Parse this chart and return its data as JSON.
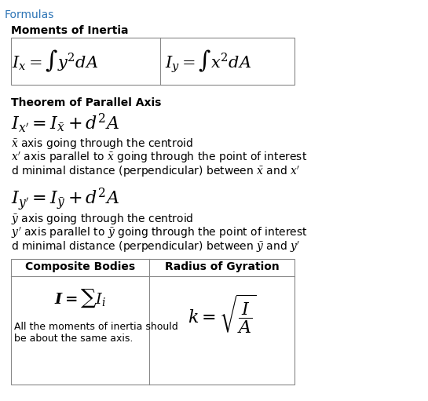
{
  "title": "Formulas",
  "title_color": "#2e75b6",
  "bg_color": "#ffffff",
  "text_color": "#000000",
  "figsize": [
    5.45,
    5.11
  ],
  "dpi": 100,
  "sections": {
    "moments_header": "Moments of Inertia",
    "parallel_header": "Theorem of Parallel Axis",
    "composite_header": "Composite Bodies",
    "gyration_header": "Radius of Gyration"
  },
  "formulas": {
    "Ix": "$I_x = \\int y^2 dA$",
    "Iy": "$I_y = \\int x^2 dA$",
    "parallel_x": "$I_{x'} = I_{\\bar{x}} + d^2A$",
    "parallel_y": "$I_{y'} = I_{\\bar{y}} + d^2A$",
    "composite": "$\\boldsymbol{I = \\sum I_i}$",
    "gyration": "$k = \\sqrt{\\dfrac{I}{A}}$"
  },
  "descriptions": {
    "xbar": "$\\bar{x}$ axis going through the centroid",
    "xprime": "$x'$ axis parallel to $\\bar{x}$ going through the point of interest",
    "d_x": "d minimal distance (perpendicular) between $\\bar{x}$ and $x'$",
    "ybar": "$\\bar{y}$ axis going through the centroid",
    "yprime": "$y'$ axis parallel to $\\bar{y}$ going through the point of interest",
    "d_y": "d minimal distance (perpendicular) between $\\bar{y}$ and $y'$",
    "composite_note": "All the moments of inertia should\nbe about the same axis."
  }
}
